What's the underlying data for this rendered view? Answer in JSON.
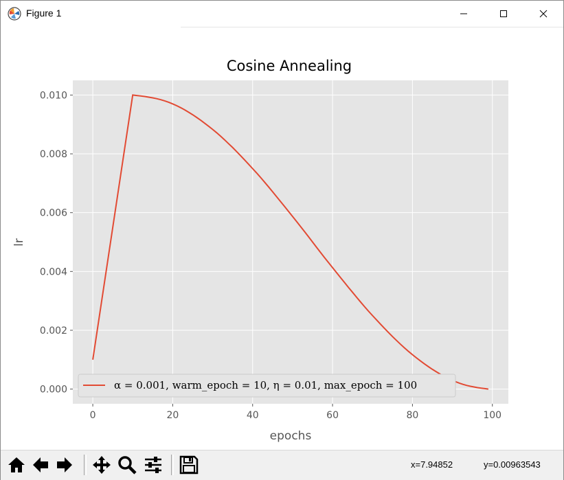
{
  "window": {
    "title": "Figure 1",
    "minimize_icon": "minimize-icon",
    "maximize_icon": "maximize-icon",
    "close_icon": "close-icon"
  },
  "toolbar": {
    "buttons": [
      "home-icon",
      "back-arrow-icon",
      "forward-arrow-icon",
      "pan-icon",
      "zoom-icon",
      "configure-subplots-icon",
      "save-icon"
    ],
    "coord_x": "x=7.94852",
    "coord_y": "y=0.00963543"
  },
  "colors": {
    "plot_background": "#e5e5e5",
    "grid": "#ffffff",
    "series": "#e24a33"
  },
  "chart_data": {
    "type": "line",
    "title": "Cosine Annealing",
    "xlabel": "epochs",
    "ylabel": "lr",
    "xlim": [
      -5,
      104
    ],
    "ylim": [
      -0.0005,
      0.0105
    ],
    "xticks": [
      0,
      20,
      40,
      60,
      80,
      100
    ],
    "xtick_labels": [
      "0",
      "20",
      "40",
      "60",
      "80",
      "100"
    ],
    "yticks": [
      0.0,
      0.002,
      0.004,
      0.006,
      0.008,
      0.01
    ],
    "ytick_labels": [
      "0.000",
      "0.002",
      "0.004",
      "0.006",
      "0.008",
      "0.010"
    ],
    "grid": true,
    "legend_position": "lower left",
    "x": [
      0,
      10,
      20,
      30,
      40,
      50,
      60,
      70,
      80,
      90,
      99
    ],
    "series": [
      {
        "name": "α = 0.001, warm_epoch = 10, η = 0.01, max_epoch = 100",
        "values": [
          0.001,
          0.01,
          0.0097,
          0.00883,
          0.0075,
          0.00587,
          0.00413,
          0.0025,
          0.00117,
          0.0003,
          0.0
        ]
      }
    ]
  }
}
